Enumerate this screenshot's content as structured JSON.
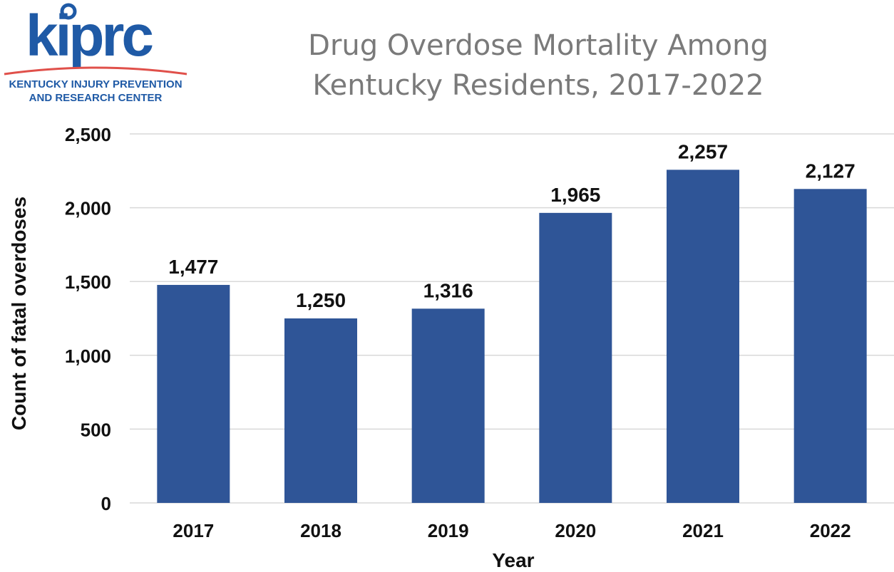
{
  "logo": {
    "name": "kiprc",
    "line1": "KENTUCKY INJURY PREVENTION",
    "line2": "AND RESEARCH CENTER",
    "text_color": "#1f5aa6",
    "accent_color": "#e0504a"
  },
  "title": {
    "line1": "Drug Overdose Mortality Among",
    "line2": "Kentucky Residents, 2017-2022"
  },
  "chart_data": {
    "type": "bar",
    "title": "Drug Overdose Mortality Among Kentucky Residents, 2017-2022",
    "xlabel": "Year",
    "ylabel": "Count of fatal overdoses",
    "categories": [
      "2017",
      "2018",
      "2019",
      "2020",
      "2021",
      "2022"
    ],
    "values": [
      1477,
      1250,
      1316,
      1965,
      2257,
      2127
    ],
    "value_labels": [
      "1,477",
      "1,250",
      "1,316",
      "1,965",
      "2,257",
      "2,127"
    ],
    "ylim": [
      0,
      2500
    ],
    "yticks": [
      0,
      500,
      1000,
      1500,
      2000,
      2500
    ],
    "ytick_labels": [
      "0",
      "500",
      "1,000",
      "1,500",
      "2,000",
      "2,500"
    ],
    "grid": true,
    "legend": "none",
    "bar_color": "#2f5597",
    "grid_color": "#d9d9d9"
  }
}
